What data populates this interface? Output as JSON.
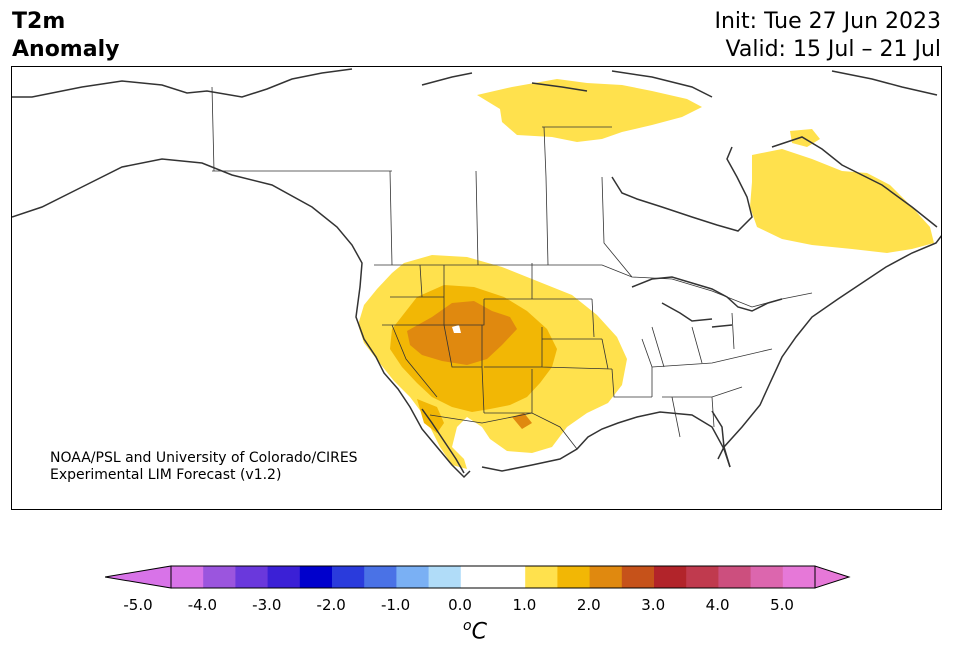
{
  "header": {
    "title_line1": "T2m",
    "title_line2": "Anomaly",
    "init": "Init: Tue 27 Jun 2023",
    "valid": "Valid: 15 Jul – 21 Jul"
  },
  "credit": {
    "line1": "NOAA/PSL and University of Colorado/CIRES",
    "line2": "Experimental LIM Forecast (v1.2)"
  },
  "colorbar": {
    "unit_base": "C",
    "unit_sup": "o",
    "tick_labels": [
      "-5.0",
      "-4.0",
      "-3.0",
      "-2.0",
      "-1.0",
      "0.0",
      "1.0",
      "2.0",
      "3.0",
      "4.0",
      "5.0"
    ],
    "colors": [
      "#d873e8",
      "#9b55de",
      "#6a38dc",
      "#3b20d6",
      "#0000cc",
      "#2a3bdc",
      "#4a72e6",
      "#7ab0f4",
      "#b0dcf8",
      "#ffffff",
      "#ffffff",
      "#ffe14d",
      "#f2b705",
      "#e0890f",
      "#c6521a",
      "#b2242a",
      "#c03a4e",
      "#cc4f7e",
      "#dc66ae",
      "#e678d8"
    ],
    "under_color": "#d873e8",
    "over_color": "#e678d8"
  },
  "anomaly_colors": {
    "level1": "#ffe14d",
    "level2": "#f2b705",
    "level3": "#e0890f"
  }
}
